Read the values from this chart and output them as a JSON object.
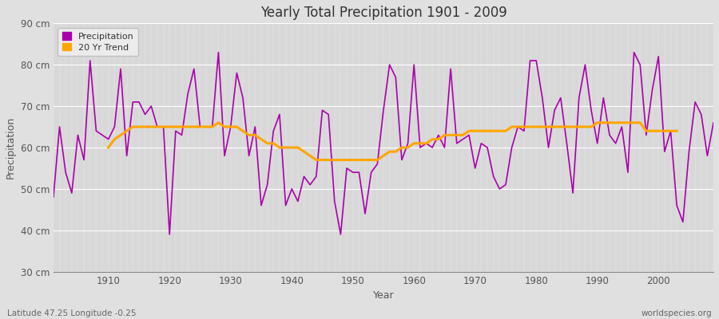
{
  "title": "Yearly Total Precipitation 1901 - 2009",
  "xlabel": "Year",
  "ylabel": "Precipitation",
  "lat_lon_label": "Latitude 47.25 Longitude -0.25",
  "watermark": "worldspecies.org",
  "ylim": [
    30,
    90
  ],
  "yticks": [
    30,
    40,
    50,
    60,
    70,
    80,
    90
  ],
  "ytick_labels": [
    "30 cm",
    "40 cm",
    "50 cm",
    "60 cm",
    "70 cm",
    "80 cm",
    "90 cm"
  ],
  "precip_color": "#AA00AA",
  "trend_color": "#FFA500",
  "fig_bg_color": "#E0E0E0",
  "plot_bg_color": "#D8D8D8",
  "years": [
    1901,
    1902,
    1903,
    1904,
    1905,
    1906,
    1907,
    1908,
    1909,
    1910,
    1911,
    1912,
    1913,
    1914,
    1915,
    1916,
    1917,
    1918,
    1919,
    1920,
    1921,
    1922,
    1923,
    1924,
    1925,
    1926,
    1927,
    1928,
    1929,
    1930,
    1931,
    1932,
    1933,
    1934,
    1935,
    1936,
    1937,
    1938,
    1939,
    1940,
    1941,
    1942,
    1943,
    1944,
    1945,
    1946,
    1947,
    1948,
    1949,
    1950,
    1951,
    1952,
    1953,
    1954,
    1955,
    1956,
    1957,
    1958,
    1959,
    1960,
    1961,
    1962,
    1963,
    1964,
    1965,
    1966,
    1967,
    1968,
    1969,
    1970,
    1971,
    1972,
    1973,
    1974,
    1975,
    1976,
    1977,
    1978,
    1979,
    1980,
    1981,
    1982,
    1983,
    1984,
    1985,
    1986,
    1987,
    1988,
    1989,
    1990,
    1991,
    1992,
    1993,
    1994,
    1995,
    1996,
    1997,
    1998,
    1999,
    2000,
    2001,
    2002,
    2003,
    2004,
    2005,
    2006,
    2007,
    2008,
    2009
  ],
  "precip": [
    48,
    65,
    54,
    49,
    63,
    57,
    81,
    64,
    63,
    62,
    65,
    79,
    58,
    71,
    71,
    68,
    70,
    65,
    65,
    39,
    64,
    63,
    73,
    79,
    65,
    65,
    65,
    83,
    58,
    65,
    78,
    72,
    58,
    65,
    46,
    51,
    64,
    68,
    46,
    50,
    47,
    53,
    51,
    53,
    69,
    68,
    47,
    39,
    55,
    54,
    54,
    44,
    54,
    56,
    69,
    80,
    77,
    57,
    61,
    80,
    60,
    61,
    60,
    63,
    60,
    79,
    61,
    62,
    63,
    55,
    61,
    60,
    53,
    50,
    51,
    60,
    65,
    64,
    81,
    81,
    72,
    60,
    69,
    72,
    61,
    49,
    72,
    80,
    69,
    61,
    72,
    63,
    61,
    65,
    54,
    83,
    80,
    63,
    74,
    82,
    59,
    64,
    46,
    42,
    59,
    71,
    68,
    58,
    66
  ],
  "trend": [
    null,
    null,
    null,
    null,
    null,
    null,
    null,
    null,
    null,
    60,
    62,
    63,
    64,
    65,
    65,
    65,
    65,
    65,
    65,
    65,
    65,
    65,
    65,
    65,
    65,
    65,
    65,
    66,
    65,
    65,
    65,
    64,
    63,
    63,
    62,
    61,
    61,
    60,
    60,
    60,
    60,
    59,
    58,
    57,
    57,
    57,
    57,
    57,
    57,
    57,
    57,
    57,
    57,
    57,
    58,
    59,
    59,
    60,
    60,
    61,
    61,
    61,
    62,
    62,
    63,
    63,
    63,
    63,
    64,
    64,
    64,
    64,
    64,
    64,
    64,
    65,
    65,
    65,
    65,
    65,
    65,
    65,
    65,
    65,
    65,
    65,
    65,
    65,
    65,
    66,
    66,
    66,
    66,
    66,
    66,
    66,
    66,
    64,
    64,
    64,
    64,
    64,
    64,
    null,
    null,
    null,
    null,
    null,
    null
  ],
  "xticks": [
    1910,
    1920,
    1930,
    1940,
    1950,
    1960,
    1970,
    1980,
    1990,
    2000
  ],
  "xlim": [
    1901,
    2009
  ]
}
